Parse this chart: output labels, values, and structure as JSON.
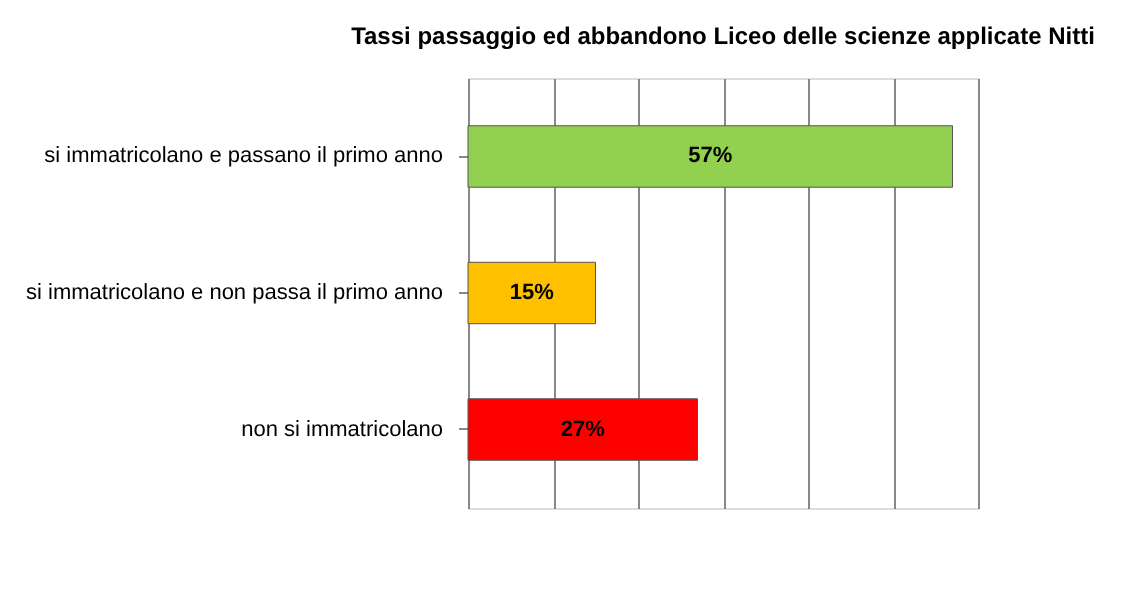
{
  "chart_data": {
    "type": "bar",
    "orientation": "horizontal",
    "title": "Tassi passaggio ed abbandono Liceo delle scienze applicate Nitti",
    "categories": [
      "si immatricolano e passano il primo anno",
      "si immatricolano e non passa il primo anno",
      "non si immatricolano"
    ],
    "values": [
      57,
      15,
      27
    ],
    "colors": [
      "#92d050",
      "#ffc000",
      "#ff0000"
    ],
    "value_labels": [
      "57%",
      "15%",
      "27%"
    ],
    "xlim": [
      0,
      60
    ],
    "xticks": [
      {
        "value": 0,
        "label": null
      },
      {
        "value": 10,
        "label": null
      },
      {
        "value": 20,
        "label": null
      },
      {
        "value": 30,
        "label": null
      },
      {
        "value": 40,
        "label": null
      },
      {
        "value": 50,
        "label": null
      },
      {
        "value": 60,
        "label": null
      }
    ],
    "grid": "x",
    "tick_labels": "y"
  }
}
